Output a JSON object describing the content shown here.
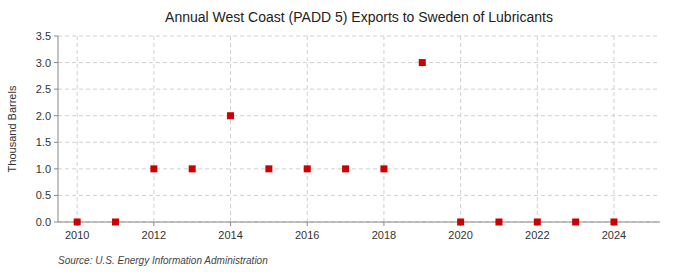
{
  "chart_data": {
    "type": "scatter",
    "title": "Annual West Coast (PADD 5) Exports to Sweden of Lubricants",
    "y_label": "Thousand Barrels",
    "annotation": "Source: U.S. Energy Information Administration",
    "x": [
      2010,
      2011,
      2012,
      2013,
      2014,
      2015,
      2016,
      2017,
      2018,
      2019,
      2020,
      2021,
      2022,
      2023,
      2024
    ],
    "values": [
      0.0,
      0.0,
      1.0,
      1.0,
      2.0,
      1.0,
      1.0,
      1.0,
      1.0,
      3.0,
      0.0,
      0.0,
      0.0,
      0.0,
      0.0
    ],
    "color": "#cc0000",
    "marker": "square",
    "xlim": [
      2009.5,
      2025.2
    ],
    "xticks": [
      2010,
      2012,
      2014,
      2016,
      2018,
      2020,
      2022,
      2024
    ],
    "ylim": [
      0.0,
      3.5
    ],
    "yticks": [
      {
        "value": 0.0,
        "label": "0.0"
      },
      0.5,
      {
        "value": 1.0,
        "label": "1.0"
      },
      1.5,
      {
        "value": 2.0,
        "label": "2.0"
      },
      2.5,
      {
        "value": 3.0,
        "label": "3.0"
      },
      3.5
    ],
    "grid": true
  }
}
